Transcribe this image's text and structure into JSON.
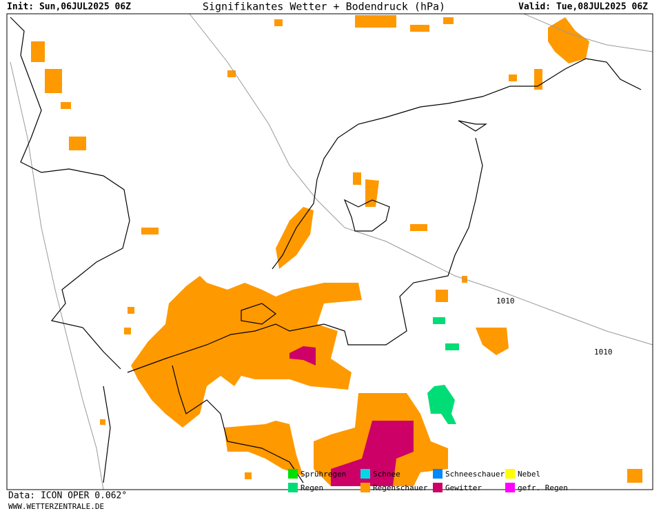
{
  "header": {
    "init": "Init: Sun,06JUL2025 06Z",
    "title": "Signifikantes Wetter  +  Bodendruck (hPa)",
    "valid": "Valid: Tue,08JUL2025 06Z"
  },
  "legend": [
    {
      "label": "Sprühregen",
      "color": "#00e000"
    },
    {
      "label": "Schnee",
      "color": "#00d8e8"
    },
    {
      "label": "Schneeschauer",
      "color": "#0088ff"
    },
    {
      "label": "Nebel",
      "color": "#ffff00"
    },
    {
      "label": "Regen",
      "color": "#00dd77"
    },
    {
      "label": "Regenschauer",
      "color": "#ff9900"
    },
    {
      "label": "Gewitter",
      "color": "#cc0066"
    },
    {
      "label": "gefr. Regen",
      "color": "#ff00ff"
    }
  ],
  "isobars": [
    1010,
    1010
  ],
  "footer": {
    "data": "Data: ICON OPER 0.062°",
    "site": "WWW.WETTERZENTRALE.DE"
  }
}
